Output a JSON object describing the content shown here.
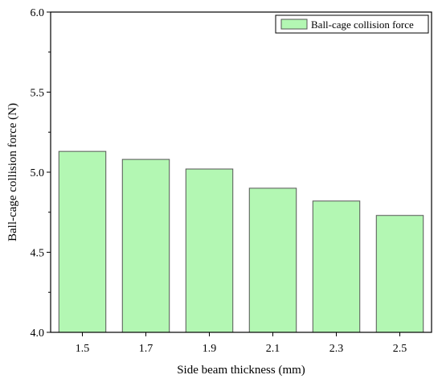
{
  "chart_data": {
    "type": "bar",
    "categories": [
      "1.5",
      "1.7",
      "1.9",
      "2.1",
      "2.3",
      "2.5"
    ],
    "series": [
      {
        "name": "Ball-cage collision force",
        "values": [
          5.13,
          5.08,
          5.02,
          4.9,
          4.82,
          4.73
        ]
      }
    ],
    "xlabel": "Side beam thickness (mm)",
    "ylabel": "Ball-cage collision force (N)",
    "ylim": [
      4.0,
      6.0
    ],
    "yticks": [
      "4.0",
      "4.5",
      "5.0",
      "5.5",
      "6.0"
    ],
    "legend_position": "top-right",
    "grid": false,
    "colors": {
      "bar_fill": "#b3f7b3",
      "bar_stroke": "#555555",
      "axis": "#000000"
    }
  }
}
